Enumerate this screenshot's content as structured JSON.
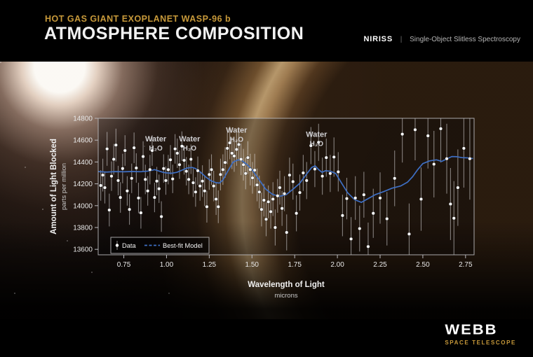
{
  "header": {
    "kicker": "HOT GAS GIANT EXOPLANET WASP-96 b",
    "title": "ATMOSPHERE COMPOSITION",
    "instrument": "NIRISS",
    "separator": "|",
    "mode": "Single-Object Slitless Spectroscopy"
  },
  "logo": {
    "name": "WEBB",
    "subtitle": "SPACE TELESCOPE"
  },
  "colors": {
    "accent_gold": "#c7993a",
    "model_blue": "#3e6fc4",
    "data_white": "#ffffff",
    "error_bar": "rgba(238,238,240,0.5)",
    "frame_gray": "#b9b9bd",
    "annotation_gray": "#d8d8dc"
  },
  "chart_data": {
    "type": "scatter",
    "xlabel": "Wavelength of Light",
    "xlabel_sub": "microns",
    "ylabel": "Amount of Light Blocked",
    "ylabel_sub": "parts per million",
    "xlim": [
      0.6,
      2.8
    ],
    "ylim": [
      13550,
      14800
    ],
    "grid": false,
    "xticks": [
      "0.75",
      "1.00",
      "1.25",
      "1.50",
      "1.75",
      "2.00",
      "2.25",
      "2.50",
      "2.75"
    ],
    "yticks": [
      13600,
      13800,
      14000,
      14200,
      14400,
      14600,
      14800
    ],
    "legend": [
      {
        "label": "Data",
        "type": "point"
      },
      {
        "label": "Best-fit Model",
        "type": "line"
      }
    ],
    "legend_position": "lower-left",
    "annotations": [
      {
        "line1": "Water",
        "line2": "H₂O",
        "x": 0.937,
        "y": 14590
      },
      {
        "line1": "Water",
        "line2": "H₂O",
        "x": 1.135,
        "y": 14590
      },
      {
        "line1": "Water",
        "line2": "H₂O",
        "x": 1.41,
        "y": 14670
      },
      {
        "line1": "Water",
        "line2": "H₂O",
        "x": 1.878,
        "y": 14630
      }
    ],
    "series": [
      {
        "name": "Data",
        "type": "scatter",
        "format": [
          "wavelength_microns",
          "ppm",
          "error_ppm"
        ],
        "points": [
          [
            0.615,
            14185,
            140
          ],
          [
            0.627,
            14280,
            150
          ],
          [
            0.639,
            14165,
            145
          ],
          [
            0.652,
            14520,
            155
          ],
          [
            0.665,
            13960,
            150
          ],
          [
            0.678,
            14270,
            135
          ],
          [
            0.691,
            14425,
            140
          ],
          [
            0.704,
            14555,
            150
          ],
          [
            0.717,
            14230,
            135
          ],
          [
            0.73,
            14075,
            140
          ],
          [
            0.743,
            14340,
            135
          ],
          [
            0.757,
            14505,
            140
          ],
          [
            0.77,
            14135,
            135
          ],
          [
            0.783,
            13965,
            140
          ],
          [
            0.796,
            14250,
            135
          ],
          [
            0.81,
            14530,
            140
          ],
          [
            0.823,
            14345,
            135
          ],
          [
            0.836,
            14070,
            140
          ],
          [
            0.85,
            13935,
            145
          ],
          [
            0.863,
            14450,
            140
          ],
          [
            0.876,
            14240,
            135
          ],
          [
            0.89,
            14135,
            135
          ],
          [
            0.903,
            14330,
            135
          ],
          [
            0.916,
            14505,
            140
          ],
          [
            0.93,
            14075,
            135
          ],
          [
            0.943,
            14225,
            130
          ],
          [
            0.956,
            14155,
            130
          ],
          [
            0.97,
            13900,
            140
          ],
          [
            0.983,
            14340,
            130
          ],
          [
            0.996,
            14230,
            130
          ],
          [
            1.01,
            14330,
            135
          ],
          [
            1.023,
            14420,
            135
          ],
          [
            1.036,
            14245,
            130
          ],
          [
            1.05,
            14520,
            135
          ],
          [
            1.063,
            14480,
            135
          ],
          [
            1.076,
            14375,
            130
          ],
          [
            1.09,
            14545,
            135
          ],
          [
            1.103,
            14415,
            130
          ],
          [
            1.116,
            14315,
            130
          ],
          [
            1.13,
            14240,
            135
          ],
          [
            1.143,
            14425,
            135
          ],
          [
            1.156,
            14210,
            130
          ],
          [
            1.17,
            14125,
            135
          ],
          [
            1.183,
            14320,
            130
          ],
          [
            1.196,
            14180,
            135
          ],
          [
            1.21,
            14225,
            145
          ],
          [
            1.223,
            14135,
            140
          ],
          [
            1.236,
            13990,
            145
          ],
          [
            1.25,
            14285,
            140
          ],
          [
            1.263,
            14330,
            140
          ],
          [
            1.276,
            14180,
            140
          ],
          [
            1.29,
            14060,
            145
          ],
          [
            1.303,
            13990,
            150
          ],
          [
            1.316,
            14285,
            145
          ],
          [
            1.33,
            14330,
            140
          ],
          [
            1.343,
            14395,
            140
          ],
          [
            1.356,
            14525,
            145
          ],
          [
            1.37,
            14575,
            150
          ],
          [
            1.383,
            14480,
            145
          ],
          [
            1.396,
            14455,
            145
          ],
          [
            1.41,
            14515,
            150
          ],
          [
            1.423,
            14560,
            150
          ],
          [
            1.436,
            14425,
            145
          ],
          [
            1.45,
            14375,
            145
          ],
          [
            1.463,
            14295,
            145
          ],
          [
            1.476,
            14440,
            150
          ],
          [
            1.49,
            14330,
            145
          ],
          [
            1.503,
            14255,
            145
          ],
          [
            1.516,
            14325,
            150
          ],
          [
            1.53,
            14190,
            150
          ],
          [
            1.543,
            14125,
            150
          ],
          [
            1.556,
            13965,
            155
          ],
          [
            1.57,
            14050,
            150
          ],
          [
            1.583,
            13875,
            155
          ],
          [
            1.596,
            14035,
            150
          ],
          [
            1.61,
            13945,
            155
          ],
          [
            1.623,
            14060,
            155
          ],
          [
            1.636,
            13800,
            165
          ],
          [
            1.65,
            14090,
            155
          ],
          [
            1.663,
            14165,
            155
          ],
          [
            1.676,
            13975,
            160
          ],
          [
            1.69,
            14110,
            160
          ],
          [
            1.703,
            13755,
            165
          ],
          [
            1.72,
            14280,
            160
          ],
          [
            1.74,
            14220,
            165
          ],
          [
            1.76,
            13930,
            165
          ],
          [
            1.78,
            14120,
            165
          ],
          [
            1.8,
            14300,
            165
          ],
          [
            1.82,
            14230,
            170
          ],
          [
            1.845,
            14550,
            170
          ],
          [
            1.868,
            14335,
            165
          ],
          [
            1.89,
            14580,
            170
          ],
          [
            1.912,
            14270,
            170
          ],
          [
            1.935,
            14440,
            175
          ],
          [
            1.958,
            14295,
            170
          ],
          [
            1.98,
            14445,
            180
          ],
          [
            2.005,
            14310,
            180
          ],
          [
            2.03,
            13910,
            190
          ],
          [
            2.055,
            14065,
            190
          ],
          [
            2.08,
            13695,
            200
          ],
          [
            2.105,
            14070,
            200
          ],
          [
            2.13,
            13790,
            210
          ],
          [
            2.155,
            14100,
            210
          ],
          [
            2.18,
            13625,
            220
          ],
          [
            2.21,
            13930,
            225
          ],
          [
            2.25,
            14070,
            235
          ],
          [
            2.29,
            13880,
            245
          ],
          [
            2.335,
            14250,
            255
          ],
          [
            2.38,
            14655,
            260
          ],
          [
            2.42,
            13740,
            280
          ],
          [
            2.455,
            14695,
            280
          ],
          [
            2.49,
            14060,
            290
          ],
          [
            2.53,
            14640,
            300
          ],
          [
            2.565,
            14380,
            305
          ],
          [
            2.605,
            14705,
            310
          ],
          [
            2.64,
            14430,
            320
          ],
          [
            2.662,
            14015,
            330
          ],
          [
            2.682,
            13885,
            340
          ],
          [
            2.705,
            14165,
            350
          ],
          [
            2.74,
            14525,
            360
          ],
          [
            2.775,
            14430,
            375
          ]
        ]
      },
      {
        "name": "Best-fit Model",
        "type": "line",
        "format": [
          "wavelength_microns",
          "ppm"
        ],
        "points": [
          [
            0.6,
            14312
          ],
          [
            0.65,
            14308
          ],
          [
            0.7,
            14312
          ],
          [
            0.75,
            14310
          ],
          [
            0.8,
            14313
          ],
          [
            0.85,
            14311
          ],
          [
            0.88,
            14315
          ],
          [
            0.9,
            14318
          ],
          [
            0.93,
            14330
          ],
          [
            0.95,
            14320
          ],
          [
            0.98,
            14305
          ],
          [
            1.0,
            14300
          ],
          [
            1.03,
            14297
          ],
          [
            1.06,
            14305
          ],
          [
            1.09,
            14325
          ],
          [
            1.12,
            14345
          ],
          [
            1.15,
            14350
          ],
          [
            1.17,
            14340
          ],
          [
            1.2,
            14305
          ],
          [
            1.23,
            14262
          ],
          [
            1.26,
            14228
          ],
          [
            1.29,
            14210
          ],
          [
            1.31,
            14207
          ],
          [
            1.33,
            14235
          ],
          [
            1.36,
            14320
          ],
          [
            1.39,
            14400
          ],
          [
            1.42,
            14420
          ],
          [
            1.44,
            14413
          ],
          [
            1.47,
            14378
          ],
          [
            1.5,
            14330
          ],
          [
            1.54,
            14242
          ],
          [
            1.58,
            14152
          ],
          [
            1.62,
            14103
          ],
          [
            1.66,
            14085
          ],
          [
            1.7,
            14100
          ],
          [
            1.74,
            14150
          ],
          [
            1.78,
            14205
          ],
          [
            1.82,
            14290
          ],
          [
            1.85,
            14350
          ],
          [
            1.87,
            14365
          ],
          [
            1.89,
            14330
          ],
          [
            1.91,
            14305
          ],
          [
            1.93,
            14320
          ],
          [
            1.96,
            14315
          ],
          [
            1.99,
            14295
          ],
          [
            2.02,
            14218
          ],
          [
            2.06,
            14118
          ],
          [
            2.1,
            14055
          ],
          [
            2.14,
            14030
          ],
          [
            2.18,
            14065
          ],
          [
            2.22,
            14100
          ],
          [
            2.27,
            14128
          ],
          [
            2.32,
            14160
          ],
          [
            2.37,
            14180
          ],
          [
            2.41,
            14215
          ],
          [
            2.44,
            14265
          ],
          [
            2.47,
            14330
          ],
          [
            2.5,
            14385
          ],
          [
            2.54,
            14410
          ],
          [
            2.58,
            14420
          ],
          [
            2.61,
            14405
          ],
          [
            2.64,
            14428
          ],
          [
            2.67,
            14450
          ],
          [
            2.7,
            14448
          ],
          [
            2.73,
            14440
          ],
          [
            2.76,
            14438
          ],
          [
            2.79,
            14432
          ]
        ]
      }
    ]
  }
}
